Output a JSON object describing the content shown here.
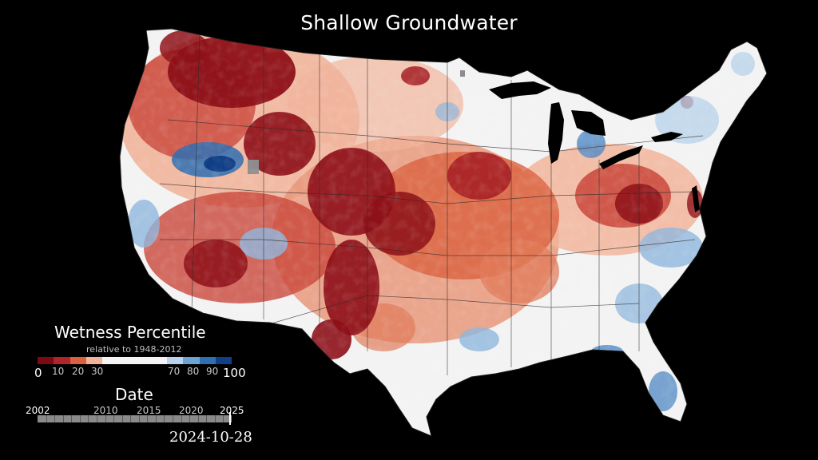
{
  "title": "Shallow Groundwater",
  "legend": {
    "title": "Wetness Percentile",
    "subtitle": "relative to 1948-2012",
    "ticks": [
      "0",
      "10",
      "20",
      "30",
      "70",
      "80",
      "90",
      "100"
    ],
    "colors": [
      "#7d0a12",
      "#b0242a",
      "#d9613f",
      "#f1b49a",
      "#f5f5f5",
      "#f5f5f5",
      "#f5f5f5",
      "#f5f5f5",
      "#b9d3ea",
      "#6da3d2",
      "#2f6fb3",
      "#103f86"
    ]
  },
  "timeline": {
    "title": "Date",
    "years": [
      "2002",
      "2010",
      "2015",
      "2020",
      "2025"
    ],
    "current_date": "2024-10-28",
    "progress": 0.99
  },
  "map": {
    "region": "Contiguous United States",
    "palette": {
      "very_dry": "#7d0a12",
      "dry": "#b0242a",
      "moderately_dry": "#d9613f",
      "slightly_dry": "#f1b49a",
      "normal": "#f3f3f3",
      "slightly_wet": "#b9d3ea",
      "wet": "#4f88c4",
      "very_wet": "#103f86",
      "no_data": "#8c8c8c"
    }
  }
}
